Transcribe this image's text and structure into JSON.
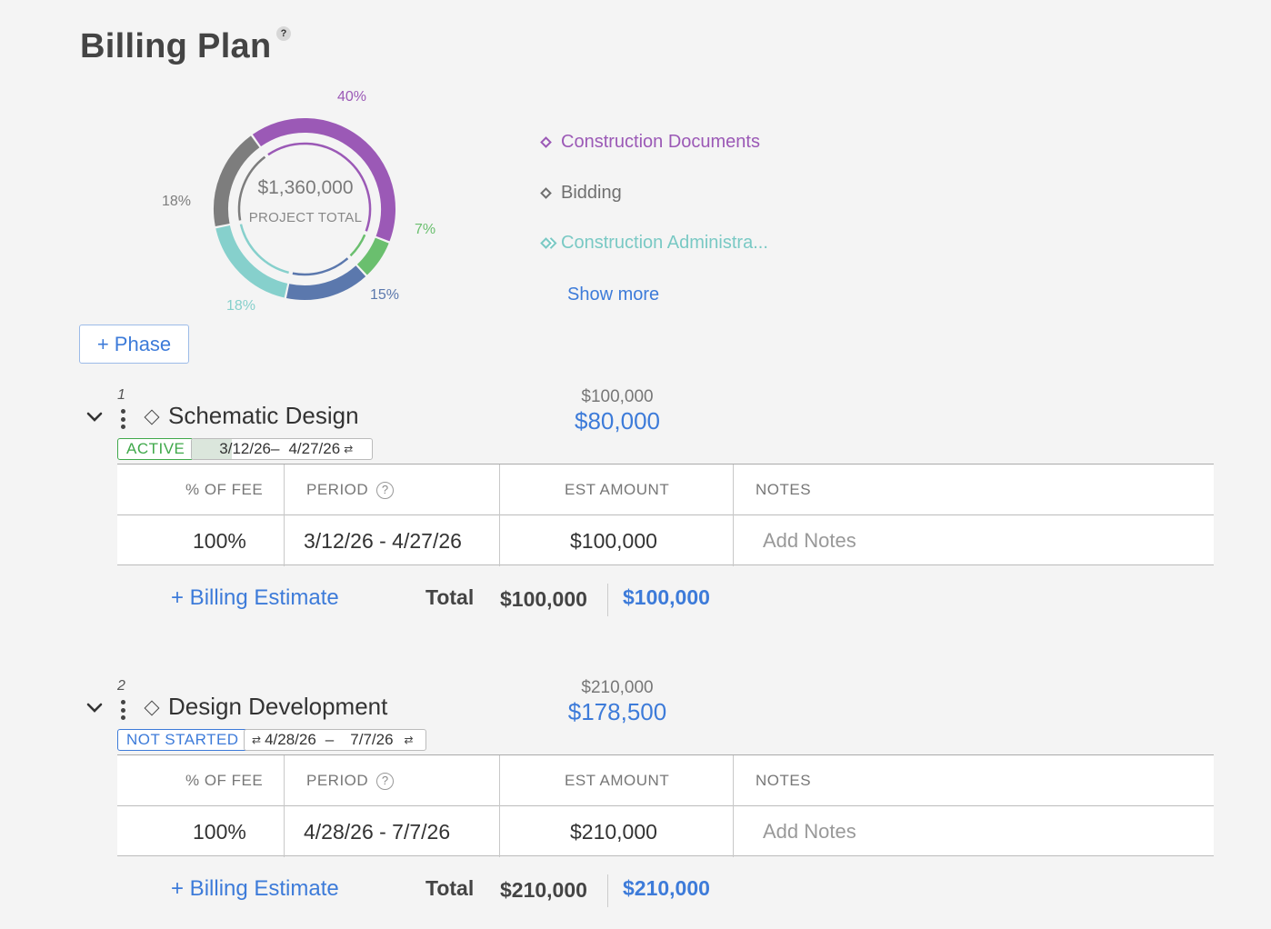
{
  "page": {
    "title": "Billing Plan",
    "help": "?"
  },
  "summary": {
    "total_amount": "$1,360,000",
    "total_label": "PROJECT TOTAL",
    "slices": [
      {
        "name": "Construction Documents",
        "pct": "40%",
        "color": "#9b59b6"
      },
      {
        "name": "",
        "pct": "7%",
        "color": "#6abf6e"
      },
      {
        "name": "",
        "pct": "15%",
        "color": "#5b78ad"
      },
      {
        "name": "Construction Administra...",
        "pct": "18%",
        "color": "#86d0cc"
      },
      {
        "name": "Bidding",
        "pct": "18%",
        "color": "#7d7d7d"
      }
    ],
    "legend": [
      {
        "label": "Construction Documents",
        "color": "#9b59b6"
      },
      {
        "label": "Bidding",
        "color": "#6f6f6f"
      },
      {
        "label": "Construction Administra...",
        "color": "#79c9c4"
      }
    ],
    "show_more": "Show more"
  },
  "add_phase": "+ Phase",
  "phases": [
    {
      "number": "1",
      "name": "Schematic Design",
      "budget": "$100,000",
      "amount": "$80,000",
      "status": "ACTIVE",
      "status_color": "#3fa84a",
      "date_start": "3/12/26",
      "date_dash": "–",
      "date_end": "4/27/26",
      "table": {
        "headers": [
          "% OF FEE",
          "PERIOD",
          "EST AMOUNT",
          "NOTES"
        ],
        "period_help": "?",
        "rows": [
          {
            "pct": "100%",
            "period": "3/12/26 - 4/27/26",
            "amount": "$100,000",
            "notes_placeholder": "Add Notes"
          }
        ]
      },
      "add_estimate": "+ Billing Estimate",
      "total_label": "Total",
      "total": "$100,000",
      "total_blue": "$100,000"
    },
    {
      "number": "2",
      "name": "Design Development",
      "budget": "$210,000",
      "amount": "$178,500",
      "status": "NOT STARTED",
      "status_color": "#3d7bd9",
      "date_start": "4/28/26",
      "date_dash": "–",
      "date_end": "7/7/26",
      "table": {
        "headers": [
          "% OF FEE",
          "PERIOD",
          "EST AMOUNT",
          "NOTES"
        ],
        "period_help": "?",
        "rows": [
          {
            "pct": "100%",
            "period": "4/28/26 - 7/7/26",
            "amount": "$210,000",
            "notes_placeholder": "Add Notes"
          }
        ]
      },
      "add_estimate": "+ Billing Estimate",
      "total_label": "Total",
      "total": "$210,000",
      "total_blue": "$210,000"
    }
  ]
}
